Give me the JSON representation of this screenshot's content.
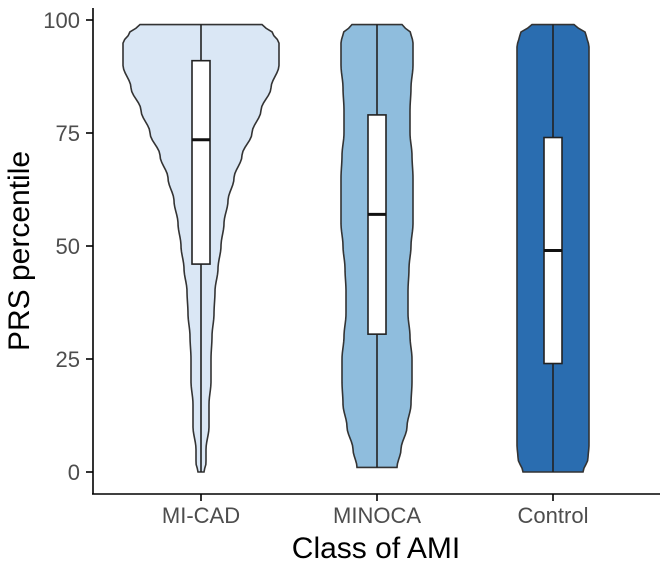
{
  "chart_data": {
    "type": "violin",
    "title": "",
    "xlabel": "Class of AMI",
    "ylabel": "PRS percentile",
    "ylim": [
      0,
      100
    ],
    "yticks": [
      0,
      25,
      50,
      75,
      100
    ],
    "grid": false,
    "legend": "none",
    "categories": [
      "MI-CAD",
      "MINOCA",
      "Control"
    ],
    "fill_colors": [
      "#dae7f5",
      "#8fbddd",
      "#2a6db0"
    ],
    "violins": [
      {
        "category": "MI-CAD",
        "y_min": 0,
        "y_max": 99,
        "density_halfwidth": [
          [
            0,
            3
          ],
          [
            2,
            5
          ],
          [
            5,
            5
          ],
          [
            10,
            8
          ],
          [
            15,
            8
          ],
          [
            20,
            10
          ],
          [
            25,
            10
          ],
          [
            30,
            11
          ],
          [
            35,
            13
          ],
          [
            40,
            14
          ],
          [
            45,
            17
          ],
          [
            50,
            20
          ],
          [
            55,
            23
          ],
          [
            60,
            27
          ],
          [
            65,
            33
          ],
          [
            70,
            41
          ],
          [
            75,
            51
          ],
          [
            80,
            60
          ],
          [
            85,
            70
          ],
          [
            90,
            78
          ],
          [
            95,
            78
          ],
          [
            97,
            72
          ],
          [
            99,
            61
          ]
        ],
        "box": {
          "q1": 46,
          "median": 73.5,
          "q3": 91
        },
        "whisker": [
          0,
          99
        ]
      },
      {
        "category": "MINOCA",
        "y_min": 1,
        "y_max": 99,
        "density_halfwidth": [
          [
            1,
            20
          ],
          [
            5,
            24
          ],
          [
            10,
            30
          ],
          [
            15,
            34
          ],
          [
            20,
            35
          ],
          [
            25,
            35
          ],
          [
            30,
            33
          ],
          [
            35,
            31
          ],
          [
            40,
            31
          ],
          [
            45,
            32
          ],
          [
            50,
            34
          ],
          [
            55,
            36
          ],
          [
            60,
            36
          ],
          [
            65,
            36
          ],
          [
            70,
            35
          ],
          [
            75,
            33
          ],
          [
            80,
            33
          ],
          [
            85,
            34
          ],
          [
            90,
            36
          ],
          [
            95,
            36
          ],
          [
            97,
            34
          ],
          [
            99,
            25
          ]
        ],
        "box": {
          "q1": 30.5,
          "median": 57,
          "q3": 79
        },
        "whisker": [
          1,
          99
        ]
      },
      {
        "category": "Control",
        "y_min": 0,
        "y_max": 99,
        "density_halfwidth": [
          [
            0,
            30
          ],
          [
            3,
            35
          ],
          [
            6,
            36
          ],
          [
            10,
            36
          ],
          [
            20,
            36
          ],
          [
            30,
            36
          ],
          [
            40,
            36
          ],
          [
            50,
            36
          ],
          [
            60,
            36
          ],
          [
            70,
            36
          ],
          [
            80,
            36
          ],
          [
            90,
            36
          ],
          [
            94,
            36
          ],
          [
            97,
            33
          ],
          [
            99,
            21
          ]
        ],
        "box": {
          "q1": 24,
          "median": 49,
          "q3": 74
        },
        "whisker": [
          0,
          99
        ]
      }
    ]
  }
}
